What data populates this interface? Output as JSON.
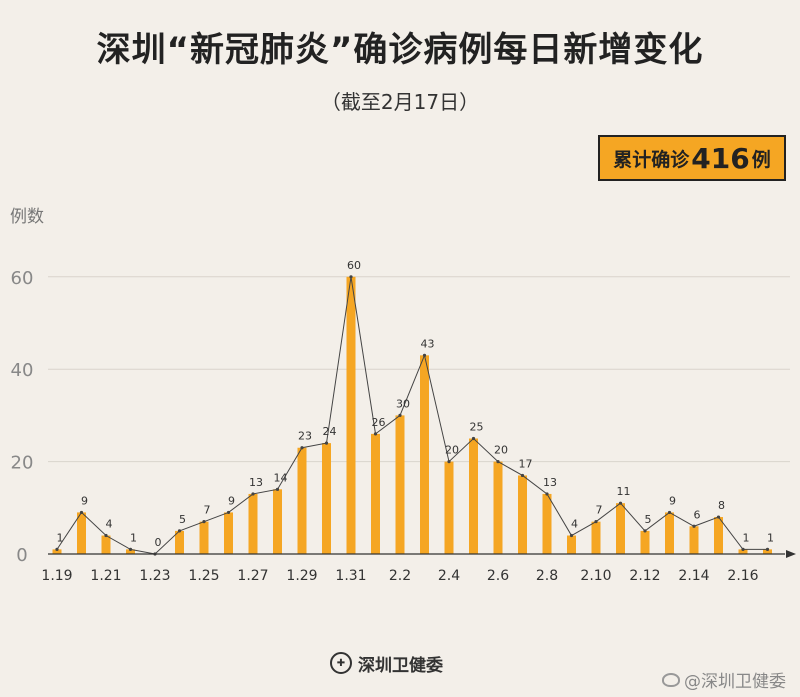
{
  "header": {
    "title": "深圳“新冠肺炎”确诊病例每日新增变化",
    "subtitle": "（截至2月17日）"
  },
  "total": {
    "prefix": "累计确诊",
    "value": "416",
    "suffix": "例"
  },
  "footer": {
    "publisher": "深圳卫健委",
    "emblem_icon": "health-commission-emblem-icon",
    "watermark": "@深圳卫健委",
    "watermark_icon": "weibo-icon"
  },
  "colors": {
    "bar": "#f5a623",
    "line": "#444444",
    "background": "#f3efe9",
    "grid": "#d9d4cc"
  },
  "chart_data": {
    "type": "bar",
    "title": "深圳“新冠肺炎”确诊病例每日新增变化",
    "ylabel": "例数",
    "xlabel": "",
    "ylim": [
      0,
      65
    ],
    "yticks": [
      0,
      20,
      40,
      60
    ],
    "grid": true,
    "overlay": "line",
    "categories": [
      "1.19",
      "1.20",
      "1.21",
      "1.22",
      "1.23",
      "1.24",
      "1.25",
      "1.26",
      "1.27",
      "1.28",
      "1.29",
      "1.30",
      "1.31",
      "2.1",
      "2.2",
      "2.3",
      "2.4",
      "2.5",
      "2.6",
      "2.7",
      "2.8",
      "2.9",
      "2.10",
      "2.11",
      "2.12",
      "2.13",
      "2.14",
      "2.15",
      "2.16",
      "2.17"
    ],
    "tick_labels": [
      "1.19",
      "1.21",
      "1.23",
      "1.25",
      "1.27",
      "1.29",
      "1.31",
      "2.2",
      "2.4",
      "2.6",
      "2.8",
      "2.10",
      "2.12",
      "2.14",
      "2.16"
    ],
    "values": [
      1,
      9,
      4,
      1,
      0,
      5,
      7,
      9,
      13,
      14,
      23,
      24,
      60,
      26,
      30,
      43,
      20,
      25,
      20,
      17,
      13,
      4,
      7,
      11,
      5,
      9,
      6,
      8,
      1,
      1
    ]
  }
}
